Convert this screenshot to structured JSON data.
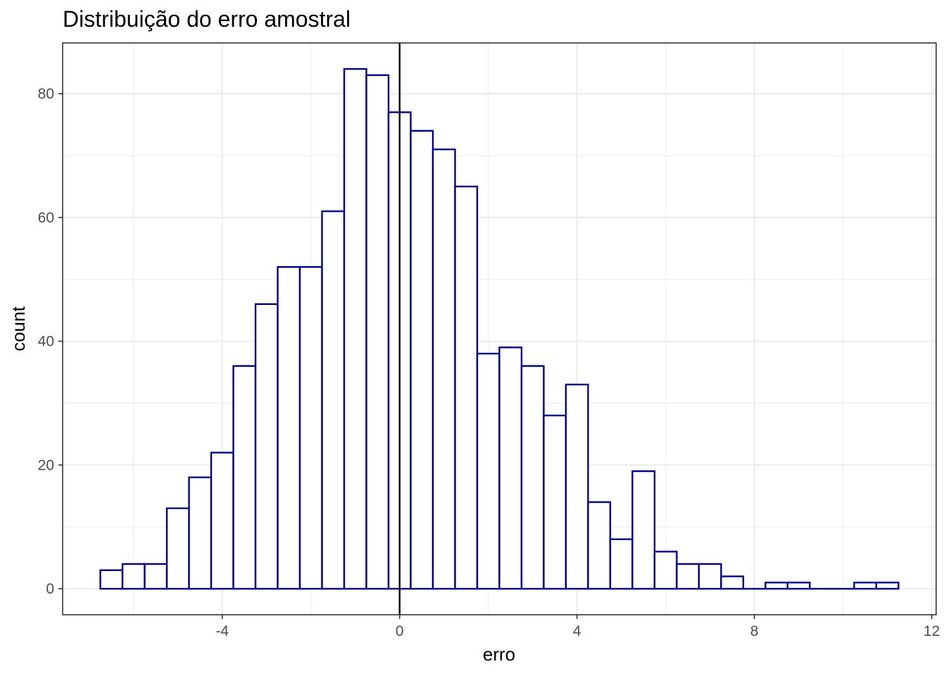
{
  "chart_data": {
    "type": "bar",
    "title": "Distribuição do erro amostral",
    "xlabel": "erro",
    "ylabel": "count",
    "bin_width": 0.5,
    "bin_centers": [
      -6.5,
      -6.0,
      -5.5,
      -5.0,
      -4.5,
      -4.0,
      -3.5,
      -3.0,
      -2.5,
      -2.0,
      -1.5,
      -1.0,
      -0.5,
      0.0,
      0.5,
      1.0,
      1.5,
      2.0,
      2.5,
      3.0,
      3.5,
      4.0,
      4.5,
      5.0,
      5.5,
      6.0,
      6.5,
      7.0,
      7.5,
      8.0,
      8.5,
      9.0,
      9.5,
      10.0,
      10.5,
      11.0
    ],
    "values": [
      3,
      4,
      4,
      13,
      18,
      22,
      36,
      46,
      52,
      52,
      61,
      84,
      83,
      77,
      74,
      71,
      65,
      38,
      39,
      36,
      28,
      33,
      14,
      8,
      19,
      6,
      4,
      4,
      2,
      0,
      1,
      1,
      0,
      0,
      1,
      1
    ],
    "xlim": [
      -7.6,
      12.1
    ],
    "ylim": [
      -4.2,
      88.2
    ],
    "x_ticks": [
      "-4",
      "0",
      "4",
      "8",
      "12"
    ],
    "y_ticks": [
      "0",
      "20",
      "40",
      "60",
      "80"
    ],
    "vline_x": 0,
    "grid": true,
    "bar_fill": "#ffffff",
    "bar_outline": "#00008b",
    "vline_color": "#000000",
    "grid_color": "#ebebeb",
    "panel_border": "#333333"
  }
}
